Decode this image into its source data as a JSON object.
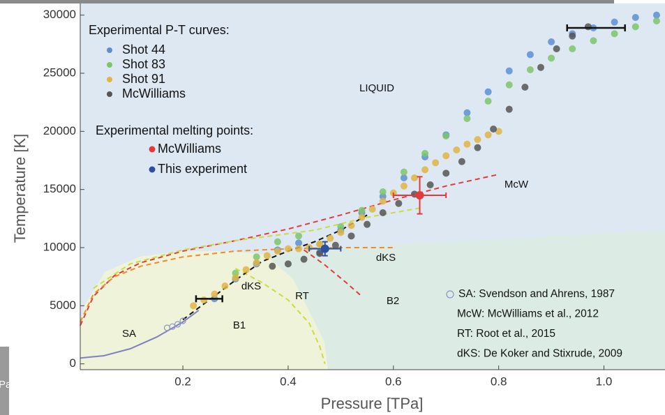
{
  "chart_data": {
    "type": "scatter",
    "xlabel": "Pressure [TPa]",
    "ylabel": "Temperature [K]",
    "xlim": [
      0.005,
      1.116
    ],
    "ylim": [
      -500,
      31000
    ],
    "xticks": [
      0.2,
      0.4,
      0.6,
      0.8,
      {
        "value": 1,
        "label": "1.0"
      }
    ],
    "yticks": [
      0,
      5000,
      10000,
      15000,
      20000,
      25000,
      30000
    ],
    "legend_title": "Experimental P-T curves:",
    "legend_position": "upper left",
    "series": [
      {
        "name": "Shot  44",
        "color": "#5b8fd4",
        "x": [
          0.26,
          0.3,
          0.34,
          0.38,
          0.42,
          0.46,
          0.5,
          0.54,
          0.58,
          0.62,
          0.66,
          0.7,
          0.74,
          0.78,
          0.82,
          0.86,
          0.9,
          0.94,
          0.98,
          1.02,
          1.06,
          1.1
        ],
        "values": [
          5600,
          7300,
          8600,
          9800,
          10400,
          9600,
          11500,
          13000,
          14400,
          16000,
          17800,
          19700,
          21600,
          23400,
          25200,
          26600,
          27700,
          28400,
          28900,
          29400,
          29800,
          30000
        ]
      },
      {
        "name": "Shot  83",
        "color": "#7cc66a",
        "x": [
          0.3,
          0.34,
          0.38,
          0.42,
          0.46,
          0.5,
          0.54,
          0.58,
          0.62,
          0.66,
          0.7,
          0.74,
          0.78,
          0.82,
          0.86,
          0.9,
          0.94,
          0.98,
          1.02,
          1.06,
          1.1
        ],
        "values": [
          7800,
          9200,
          10500,
          11000,
          10300,
          11800,
          13200,
          14800,
          16500,
          18100,
          19600,
          21100,
          22600,
          24000,
          25300,
          26300,
          27100,
          27800,
          28400,
          29000,
          29500
        ]
      },
      {
        "name": "Shot  91",
        "color": "#e2b444",
        "x": [
          0.22,
          0.24,
          0.26,
          0.28,
          0.3,
          0.32,
          0.34,
          0.36,
          0.38,
          0.4,
          0.42,
          0.44,
          0.46,
          0.48,
          0.5,
          0.52,
          0.54,
          0.56,
          0.58,
          0.6,
          0.62,
          0.64,
          0.66,
          0.68,
          0.7,
          0.72,
          0.74,
          0.76,
          0.78,
          0.8
        ],
        "values": [
          5000,
          5500,
          6000,
          6700,
          7400,
          8100,
          8700,
          9300,
          9700,
          9900,
          9900,
          10000,
          10300,
          10800,
          11300,
          11900,
          12600,
          13300,
          14000,
          14700,
          15300,
          16000,
          16700,
          17300,
          17900,
          18400,
          18900,
          19300,
          19700,
          20000
        ]
      },
      {
        "name": "McWilliams",
        "color": "#555555",
        "x": [
          0.37,
          0.4,
          0.43,
          0.46,
          0.49,
          0.52,
          0.55,
          0.58,
          0.61,
          0.64,
          0.67,
          0.7,
          0.73,
          0.76,
          0.79,
          0.82,
          0.85,
          0.88,
          0.91,
          0.94,
          0.97
        ],
        "values": [
          8400,
          8600,
          9000,
          9500,
          10200,
          11000,
          12000,
          13000,
          13800,
          14600,
          15400,
          16400,
          17400,
          18600,
          20200,
          21900,
          23800,
          25500,
          27100,
          28200,
          29000
        ]
      }
    ],
    "melting_title": "Experimental melting points:",
    "melting_points": [
      {
        "name": "McWilliams",
        "color": "#e23a3a",
        "x": [
          0.65
        ],
        "values": [
          14500
        ],
        "xerr": [
          0.05
        ],
        "yerr": [
          1600
        ]
      },
      {
        "name": "This experiment",
        "color": "#2c4fa0",
        "x": [
          0.47
        ],
        "values": [
          9900
        ],
        "xerr": [
          0.03
        ],
        "yerr": [
          600
        ]
      }
    ],
    "error_bars": {
      "color": "#111111",
      "x": [
        0.25,
        0.985
      ],
      "values": [
        5600,
        28900
      ],
      "xerr": [
        0.025,
        0.055
      ]
    },
    "sa_points": {
      "color": "#8a94c4",
      "x": [
        0.17,
        0.18,
        0.19,
        0.2
      ],
      "values": [
        3100,
        3200,
        3400,
        3700
      ]
    },
    "curves": [
      {
        "color": "#e03c3c",
        "dashed": true,
        "x": [
          0.005,
          0.03,
          0.07,
          0.12,
          0.2,
          0.3,
          0.4,
          0.5,
          0.6,
          0.7,
          0.8
        ],
        "values": [
          3300,
          5800,
          7600,
          8700,
          9700,
          10600,
          11600,
          12800,
          14100,
          15300,
          16300
        ]
      },
      {
        "color": "#e03c3c",
        "dashed": true,
        "x": [
          0.43,
          0.47,
          0.51,
          0.54
        ],
        "values": [
          9800,
          8500,
          7000,
          5800
        ]
      },
      {
        "color": "#f08a2a",
        "dashed": true,
        "x": [
          0.005,
          0.03,
          0.07,
          0.12,
          0.2,
          0.3,
          0.4,
          0.5,
          0.6
        ],
        "values": [
          3600,
          6000,
          7500,
          8400,
          9200,
          9700,
          9900,
          10000,
          10000
        ]
      },
      {
        "color": "#cbdc3c",
        "dashed": true,
        "x": [
          0.03,
          0.1,
          0.2,
          0.3,
          0.4,
          0.45,
          0.55,
          0.65
        ],
        "values": [
          6500,
          8600,
          9800,
          10600,
          11200,
          11500,
          12600,
          13400
        ]
      },
      {
        "color": "#cbdc3c",
        "dashed": true,
        "x": [
          0.3,
          0.35,
          0.4,
          0.44,
          0.46,
          0.47
        ],
        "values": [
          8200,
          7000,
          5500,
          3500,
          1500,
          0
        ]
      },
      {
        "color": "#8080c0",
        "dashed": false,
        "x": [
          0.005,
          0.05,
          0.1,
          0.15,
          0.2,
          0.23
        ],
        "values": [
          500,
          700,
          1300,
          2300,
          3600,
          4600
        ]
      },
      {
        "color": "#111111",
        "dashed": true,
        "x": [
          0.2,
          0.25,
          0.3,
          0.35,
          0.4,
          0.45,
          0.5,
          0.55
        ],
        "values": [
          3800,
          5500,
          7200,
          8800,
          9700,
          10500,
          11500,
          12800
        ]
      }
    ],
    "annotations": [
      "LIQUID",
      "McW",
      "dKS",
      "dKS",
      "RT",
      "B2",
      "B1",
      "SA"
    ],
    "references": [
      "SA: Svendson and Ahrens, 1987",
      "McW: McWilliams et al., 2012",
      "RT: Root et al., 2015",
      "dKS:  De Koker and Stixrude, 2009"
    ],
    "fragment_text": "Pa"
  }
}
